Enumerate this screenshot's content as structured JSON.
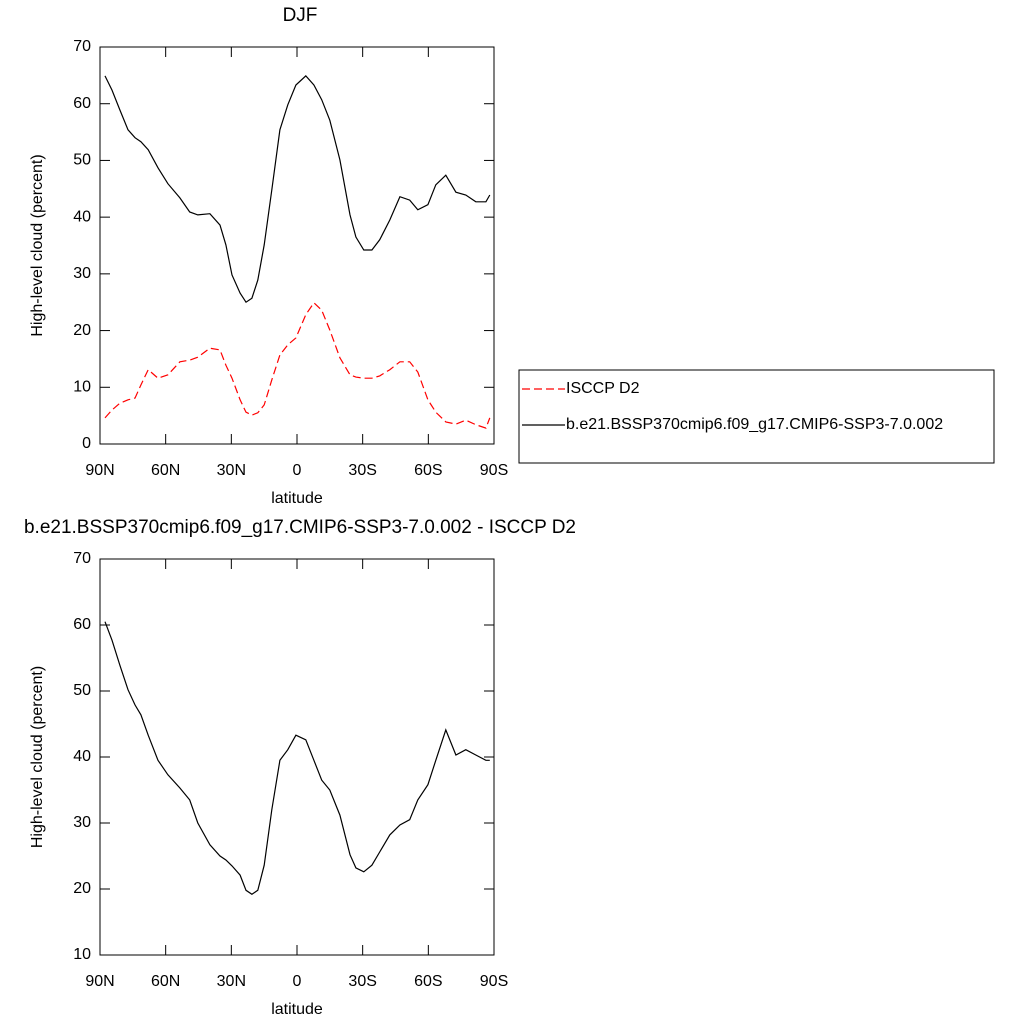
{
  "chart_data": [
    {
      "type": "line",
      "title": "DJF",
      "xlabel": "latitude",
      "ylabel": "High-level cloud (percent)",
      "x": [
        87.7,
        84.5,
        80.9,
        77.2,
        74,
        71.3,
        68,
        63.5,
        59,
        53.5,
        49,
        45.3,
        39.8,
        35.2,
        32.5,
        29.7,
        26,
        23.3,
        20.6,
        17.9,
        15,
        11.5,
        7.8,
        4.2,
        0.5,
        -4,
        -7.7,
        -11.3,
        -15,
        -19.6,
        -24.2,
        -26.9,
        -30.5,
        -34.2,
        -37.8,
        -42.4,
        -47,
        -51.5,
        -55.2,
        -59.8,
        -63.4,
        -68,
        -72.6,
        -77.1,
        -81.7,
        -86.3,
        -88.1
      ],
      "series": [
        {
          "name": "ISCCP D2",
          "color": "#ff0000",
          "linestyle": "dashed",
          "values": [
            4.6,
            6,
            7.2,
            7.8,
            8.1,
            10.4,
            13.1,
            11.6,
            12.2,
            14.5,
            14.8,
            15.3,
            16.9,
            16.6,
            13.9,
            11.6,
            7.8,
            5.6,
            5.1,
            5.5,
            6.9,
            11.3,
            15.7,
            17.5,
            18.7,
            22.8,
            24.9,
            23.6,
            20.1,
            15.2,
            12.2,
            11.8,
            11.6,
            11.6,
            12,
            13.1,
            14.5,
            14.5,
            12.7,
            7.8,
            5.6,
            3.9,
            3.5,
            4.2,
            3.4,
            2.8,
            4.6
          ]
        },
        {
          "name": "b.e21.BSSP370cmip6.f09_g17.CMIP6-SSP3-7.0.002",
          "color": "#000000",
          "linestyle": "solid",
          "values": [
            64.9,
            62.4,
            58.9,
            55.4,
            54,
            53.3,
            51.9,
            48.7,
            45.9,
            43.4,
            40.9,
            40.4,
            40.6,
            38.6,
            35.1,
            29.8,
            26.6,
            25,
            25.7,
            28.9,
            35.1,
            44.8,
            55.4,
            59.8,
            63.3,
            64.9,
            63.3,
            60.7,
            57.1,
            50.1,
            40.4,
            36.5,
            34.2,
            34.2,
            36,
            39.5,
            43.6,
            43,
            41.3,
            42.2,
            45.7,
            47.4,
            44.4,
            43.9,
            42.7,
            42.7,
            43.9
          ]
        }
      ],
      "xlim": [
        90,
        -90
      ],
      "xticks": [
        {
          "value": 90,
          "label": "90N"
        },
        {
          "value": 60,
          "label": "60N"
        },
        {
          "value": 30,
          "label": "30N"
        },
        0,
        {
          "value": -30,
          "label": "30S"
        },
        {
          "value": -60,
          "label": "60S"
        },
        {
          "value": -90,
          "label": "90S"
        }
      ],
      "ylim": [
        0,
        70
      ],
      "yticks": [
        0,
        10,
        20,
        30,
        40,
        50,
        60,
        70
      ],
      "legend": "right"
    },
    {
      "type": "line",
      "title": "b.e21.BSSP370cmip6.f09_g17.CMIP6-SSP3-7.0.002 - ISCCP D2",
      "xlabel": "latitude",
      "ylabel": "High-level cloud (percent)",
      "x": [
        87.7,
        84.5,
        80.9,
        77.2,
        74,
        71.3,
        68,
        63.5,
        59,
        53.5,
        49,
        45.3,
        39.8,
        35.2,
        32.5,
        29.7,
        26,
        23.3,
        20.6,
        17.9,
        15,
        11.5,
        7.8,
        4.2,
        0.5,
        -4,
        -7.7,
        -11.3,
        -15,
        -19.6,
        -24.2,
        -26.9,
        -30.5,
        -34.2,
        -37.8,
        -42.4,
        -47,
        -51.5,
        -55.2,
        -59.8,
        -63.4,
        -68,
        -72.6,
        -77.1,
        -81.7,
        -86.3,
        -88.1
      ],
      "series": [
        {
          "color": "#000000",
          "linestyle": "solid",
          "values": [
            60.5,
            57.7,
            53.9,
            50.2,
            47.9,
            46.4,
            43.3,
            39.5,
            37.3,
            35.3,
            33.5,
            30,
            26.7,
            25,
            24.4,
            23.5,
            22.1,
            19.8,
            19.2,
            19.8,
            23.6,
            32,
            39.5,
            41.1,
            43.3,
            42.6,
            39.5,
            36.5,
            35,
            31.2,
            25.2,
            23.2,
            22.6,
            23.6,
            25.6,
            28.2,
            29.7,
            30.5,
            33.5,
            35.8,
            39.5,
            44.1,
            40.3,
            41.1,
            40.3,
            39.5,
            39.5
          ]
        }
      ],
      "xlim": [
        90,
        -90
      ],
      "xticks": [
        {
          "value": 90,
          "label": "90N"
        },
        {
          "value": 60,
          "label": "60N"
        },
        {
          "value": 30,
          "label": "30N"
        },
        0,
        {
          "value": -30,
          "label": "30S"
        },
        {
          "value": -60,
          "label": "60S"
        },
        {
          "value": -90,
          "label": "90S"
        }
      ],
      "ylim": [
        10,
        70
      ],
      "yticks": [
        10,
        20,
        30,
        40,
        50,
        60,
        70
      ]
    }
  ]
}
